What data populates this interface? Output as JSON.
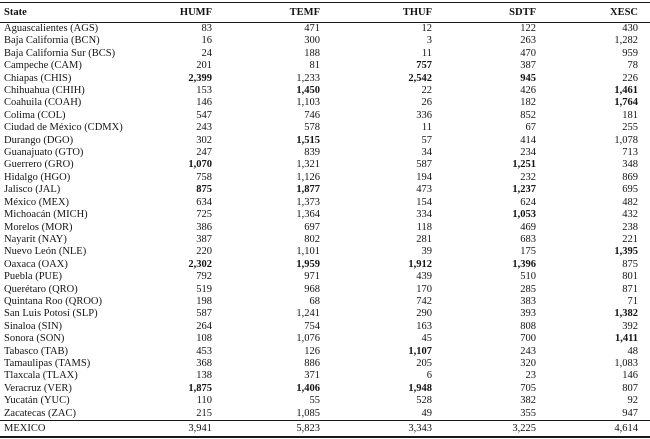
{
  "table": {
    "columns": [
      "State",
      "HUMF",
      "TEMF",
      "THUF",
      "SDTF",
      "XESC"
    ],
    "rows": [
      {
        "state": "Aguascalientes (AGS)",
        "values": [
          "83",
          "471",
          "12",
          "122",
          "430"
        ],
        "bold": [
          0,
          0,
          0,
          0,
          0
        ]
      },
      {
        "state": "Baja California (BCN)",
        "values": [
          "16",
          "300",
          "3",
          "263",
          "1,282"
        ],
        "bold": [
          0,
          0,
          0,
          0,
          0
        ]
      },
      {
        "state": "Baja California Sur (BCS)",
        "values": [
          "24",
          "188",
          "11",
          "470",
          "959"
        ],
        "bold": [
          0,
          0,
          0,
          0,
          0
        ]
      },
      {
        "state": "Campeche (CAM)",
        "values": [
          "201",
          "81",
          "757",
          "387",
          "78"
        ],
        "bold": [
          0,
          0,
          1,
          0,
          0
        ]
      },
      {
        "state": "Chiapas (CHIS)",
        "values": [
          "2,399",
          "1,233",
          "2,542",
          "945",
          "226"
        ],
        "bold": [
          1,
          0,
          1,
          1,
          0
        ]
      },
      {
        "state": "Chihuahua (CHIH)",
        "values": [
          "153",
          "1,450",
          "22",
          "426",
          "1,461"
        ],
        "bold": [
          0,
          1,
          0,
          0,
          1
        ]
      },
      {
        "state": "Coahuila (COAH)",
        "values": [
          "146",
          "1,103",
          "26",
          "182",
          "1,764"
        ],
        "bold": [
          0,
          0,
          0,
          0,
          1
        ]
      },
      {
        "state": "Colima (COL)",
        "values": [
          "547",
          "746",
          "336",
          "852",
          "181"
        ],
        "bold": [
          0,
          0,
          0,
          0,
          0
        ]
      },
      {
        "state": "Ciudad de México (CDMX)",
        "values": [
          "243",
          "578",
          "11",
          "67",
          "255"
        ],
        "bold": [
          0,
          0,
          0,
          0,
          0
        ]
      },
      {
        "state": "Durango (DGO)",
        "values": [
          "302",
          "1,515",
          "57",
          "414",
          "1,078"
        ],
        "bold": [
          0,
          1,
          0,
          0,
          0
        ]
      },
      {
        "state": "Guanajuato (GTO)",
        "values": [
          "247",
          "839",
          "34",
          "234",
          "713"
        ],
        "bold": [
          0,
          0,
          0,
          0,
          0
        ]
      },
      {
        "state": "Guerrero (GRO)",
        "values": [
          "1,070",
          "1,321",
          "587",
          "1,251",
          "348"
        ],
        "bold": [
          1,
          0,
          0,
          1,
          0
        ]
      },
      {
        "state": "Hidalgo (HGO)",
        "values": [
          "758",
          "1,126",
          "194",
          "232",
          "869"
        ],
        "bold": [
          0,
          0,
          0,
          0,
          0
        ]
      },
      {
        "state": "Jalisco (JAL)",
        "values": [
          "875",
          "1,877",
          "473",
          "1,237",
          "695"
        ],
        "bold": [
          1,
          1,
          0,
          1,
          0
        ]
      },
      {
        "state": "México (MEX)",
        "values": [
          "634",
          "1,373",
          "154",
          "624",
          "482"
        ],
        "bold": [
          0,
          0,
          0,
          0,
          0
        ]
      },
      {
        "state": "Michoacán (MICH)",
        "values": [
          "725",
          "1,364",
          "334",
          "1,053",
          "432"
        ],
        "bold": [
          0,
          0,
          0,
          1,
          0
        ]
      },
      {
        "state": "Morelos (MOR)",
        "values": [
          "386",
          "697",
          "118",
          "469",
          "238"
        ],
        "bold": [
          0,
          0,
          0,
          0,
          0
        ]
      },
      {
        "state": "Nayarit (NAY)",
        "values": [
          "387",
          "802",
          "281",
          "683",
          "221"
        ],
        "bold": [
          0,
          0,
          0,
          0,
          0
        ]
      },
      {
        "state": "Nuevo León (NLE)",
        "values": [
          "220",
          "1,101",
          "39",
          "175",
          "1,395"
        ],
        "bold": [
          0,
          0,
          0,
          0,
          1
        ]
      },
      {
        "state": "Oaxaca (OAX)",
        "values": [
          "2,302",
          "1,959",
          "1,912",
          "1,396",
          "875"
        ],
        "bold": [
          1,
          1,
          1,
          1,
          0
        ]
      },
      {
        "state": "Puebla (PUE)",
        "values": [
          "792",
          "971",
          "439",
          "510",
          "801"
        ],
        "bold": [
          0,
          0,
          0,
          0,
          0
        ]
      },
      {
        "state": "Querétaro (QRO)",
        "values": [
          "519",
          "968",
          "170",
          "285",
          "871"
        ],
        "bold": [
          0,
          0,
          0,
          0,
          0
        ]
      },
      {
        "state": "Quintana Roo (QROO)",
        "values": [
          "198",
          "68",
          "742",
          "383",
          "71"
        ],
        "bold": [
          0,
          0,
          0,
          0,
          0
        ]
      },
      {
        "state": "San Luis Potosí (SLP)",
        "values": [
          "587",
          "1,241",
          "290",
          "393",
          "1,382"
        ],
        "bold": [
          0,
          0,
          0,
          0,
          1
        ]
      },
      {
        "state": "Sinaloa (SIN)",
        "values": [
          "264",
          "754",
          "163",
          "808",
          "392"
        ],
        "bold": [
          0,
          0,
          0,
          0,
          0
        ]
      },
      {
        "state": "Sonora (SON)",
        "values": [
          "108",
          "1,076",
          "45",
          "700",
          "1,411"
        ],
        "bold": [
          0,
          0,
          0,
          0,
          1
        ]
      },
      {
        "state": "Tabasco (TAB)",
        "values": [
          "453",
          "126",
          "1,107",
          "243",
          "48"
        ],
        "bold": [
          0,
          0,
          1,
          0,
          0
        ]
      },
      {
        "state": "Tamaulipas (TAMS)",
        "values": [
          "368",
          "886",
          "205",
          "320",
          "1,083"
        ],
        "bold": [
          0,
          0,
          0,
          0,
          0
        ]
      },
      {
        "state": "Tlaxcala (TLAX)",
        "values": [
          "138",
          "371",
          "6",
          "23",
          "146"
        ],
        "bold": [
          0,
          0,
          0,
          0,
          0
        ]
      },
      {
        "state": "Veracruz (VER)",
        "values": [
          "1,875",
          "1,406",
          "1,948",
          "705",
          "807"
        ],
        "bold": [
          1,
          1,
          1,
          0,
          0
        ]
      },
      {
        "state": "Yucatán (YUC)",
        "values": [
          "110",
          "55",
          "528",
          "382",
          "92"
        ],
        "bold": [
          0,
          0,
          0,
          0,
          0
        ]
      },
      {
        "state": "Zacatecas (ZAC)",
        "values": [
          "215",
          "1,085",
          "49",
          "355",
          "947"
        ],
        "bold": [
          0,
          0,
          0,
          0,
          0
        ]
      },
      {
        "state": "MEXICO",
        "values": [
          "3,941",
          "5,823",
          "3,343",
          "3,225",
          "4,614"
        ],
        "bold": [
          0,
          0,
          0,
          0,
          0
        ],
        "total": true
      }
    ]
  }
}
